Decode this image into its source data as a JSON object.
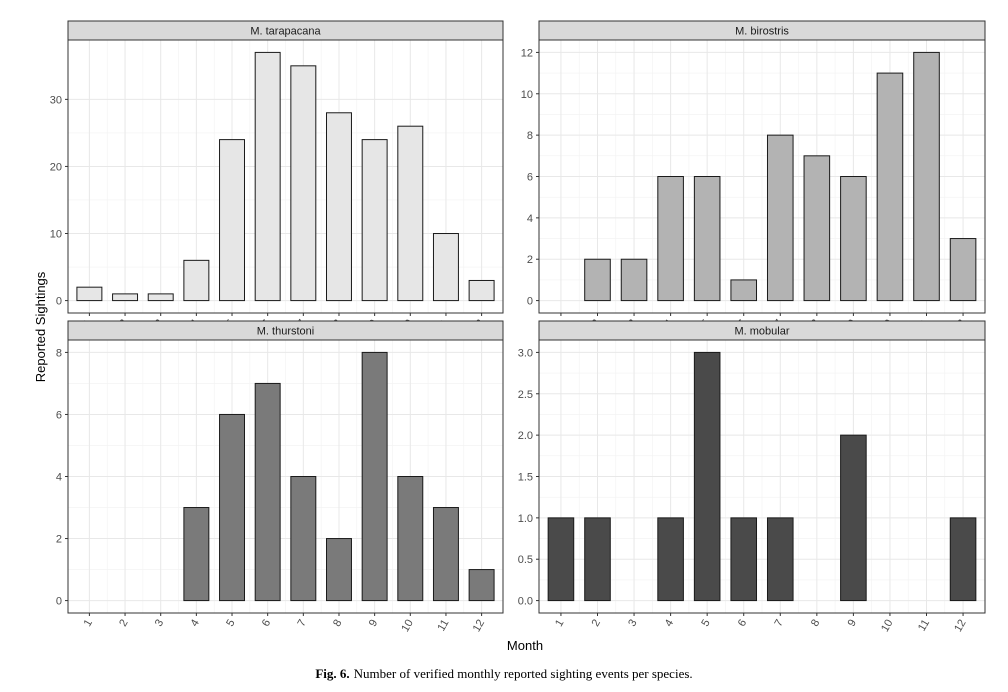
{
  "x_axis_title": "Month",
  "y_axis_title": "Reported Sightings",
  "caption": {
    "label": "Fig. 6.",
    "text": "Number of verified monthly reported sighting events per species."
  },
  "chart_data": [
    {
      "type": "bar",
      "title": "M. tarapacana",
      "fill": "#e6e6e6",
      "categories": [
        "1",
        "2",
        "3",
        "4",
        "5",
        "6",
        "7",
        "8",
        "9",
        "10",
        "11",
        "12"
      ],
      "values": [
        2,
        1,
        1,
        6,
        24,
        37,
        35,
        28,
        24,
        26,
        10,
        3
      ],
      "yticks": [
        0,
        10,
        20,
        30
      ],
      "ytick_labels": [
        "0",
        "10",
        "20",
        "30"
      ],
      "ylim": [
        -1.85,
        38.85
      ],
      "xlabel": "Month",
      "ylabel": "Reported Sightings"
    },
    {
      "type": "bar",
      "title": "M. birostris",
      "fill": "#b3b3b3",
      "categories": [
        "1",
        "2",
        "3",
        "4",
        "5",
        "6",
        "7",
        "8",
        "9",
        "10",
        "11",
        "12"
      ],
      "values": [
        0,
        2,
        2,
        6,
        6,
        1,
        8,
        7,
        6,
        11,
        12,
        3
      ],
      "yticks": [
        0,
        2,
        4,
        6,
        8,
        10,
        12
      ],
      "ytick_labels": [
        "0",
        "2",
        "4",
        "6",
        "8",
        "10",
        "12"
      ],
      "ylim": [
        -0.6,
        12.6
      ],
      "xlabel": "Month",
      "ylabel": "Reported Sightings"
    },
    {
      "type": "bar",
      "title": "M. thurstoni",
      "fill": "#7a7a7a",
      "categories": [
        "1",
        "2",
        "3",
        "4",
        "5",
        "6",
        "7",
        "8",
        "9",
        "10",
        "11",
        "12"
      ],
      "values": [
        0,
        0,
        0,
        3,
        6,
        7,
        4,
        2,
        8,
        4,
        3,
        1
      ],
      "yticks": [
        0,
        2,
        4,
        6,
        8
      ],
      "ytick_labels": [
        "0",
        "2",
        "4",
        "6",
        "8"
      ],
      "ylim": [
        -0.4,
        8.4
      ],
      "xlabel": "Month",
      "ylabel": "Reported Sightings"
    },
    {
      "type": "bar",
      "title": "M. mobular",
      "fill": "#4a4a4a",
      "categories": [
        "1",
        "2",
        "3",
        "4",
        "5",
        "6",
        "7",
        "8",
        "9",
        "10",
        "11",
        "12"
      ],
      "values": [
        1,
        1,
        0,
        1,
        3,
        1,
        1,
        0,
        2,
        0,
        0,
        1
      ],
      "yticks": [
        0,
        0.5,
        1,
        1.5,
        2,
        2.5,
        3
      ],
      "ytick_labels": [
        "0.0",
        "0.5",
        "1.0",
        "1.5",
        "2.0",
        "2.5",
        "3.0"
      ],
      "ylim": [
        -0.15,
        3.15
      ],
      "xlabel": "Month",
      "ylabel": "Reported Sightings"
    }
  ]
}
